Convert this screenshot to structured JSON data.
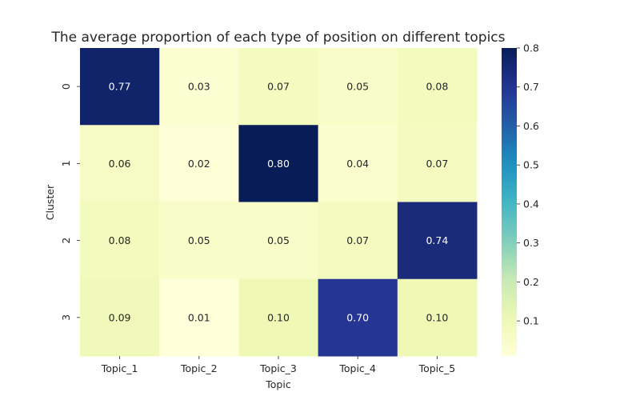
{
  "chart_data": {
    "type": "heatmap",
    "title": "The average proportion of each type of position on different topics",
    "xlabel": "Topic",
    "ylabel": "Cluster",
    "x_categories": [
      "Topic_1",
      "Topic_2",
      "Topic_3",
      "Topic_4",
      "Topic_5"
    ],
    "y_categories": [
      "0",
      "1",
      "2",
      "3"
    ],
    "values": [
      [
        0.77,
        0.03,
        0.07,
        0.05,
        0.08
      ],
      [
        0.06,
        0.02,
        0.8,
        0.04,
        0.07
      ],
      [
        0.08,
        0.05,
        0.05,
        0.07,
        0.74
      ],
      [
        0.09,
        0.01,
        0.1,
        0.7,
        0.1
      ]
    ],
    "value_format": "0.00",
    "colormap": "YlGnBu",
    "colorbar_range": [
      0.01,
      0.8
    ],
    "colorbar_ticks": [
      "0.1",
      "0.2",
      "0.3",
      "0.4",
      "0.5",
      "0.6",
      "0.7",
      "0.8"
    ],
    "colorbar_tick_values": [
      0.1,
      0.2,
      0.3,
      0.4,
      0.5,
      0.6,
      0.7,
      0.8
    ],
    "annotation_colors": {
      "dark": "#262626",
      "light": "#ffffff"
    }
  }
}
